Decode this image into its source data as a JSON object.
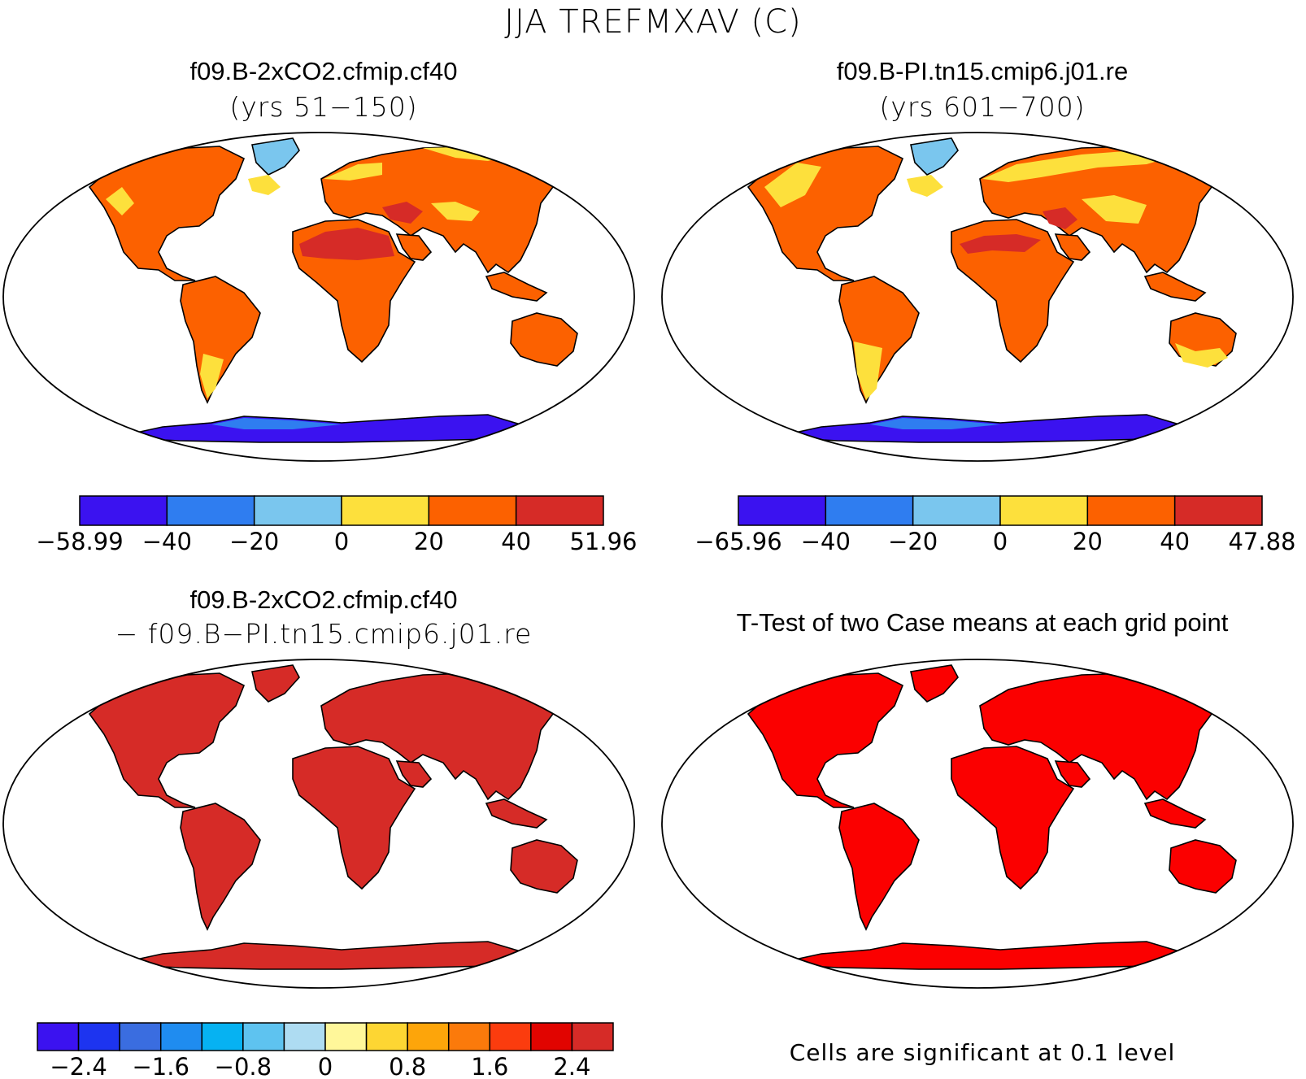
{
  "title": "JJA TREFMXAV (C)",
  "panels": [
    {
      "id": "case1",
      "title": "f09.B-2xCO2.cfmip.cf40",
      "subtitle": "(yrs 51−150)"
    },
    {
      "id": "case2",
      "title": "f09.B-PI.tn15.cmip6.j01.re",
      "subtitle": "(yrs 601−700)"
    },
    {
      "id": "diff",
      "title": "f09.B-2xCO2.cfmip.cf40",
      "subtitle": "− f09.B−PI.tn15.cmip6.j01.re"
    },
    {
      "id": "ttest",
      "title": "T-Test of two Case means at each grid point",
      "subtitle": ""
    }
  ],
  "colorbars": [
    {
      "id": "case1-bar",
      "colors": [
        "#3b12f0",
        "#2f7df0",
        "#7ac6ee",
        "#fde03c",
        "#fc6100",
        "#d62b27"
      ],
      "labels": [
        "−58.99",
        "−40",
        "−20",
        "0",
        "20",
        "40",
        "51.96"
      ]
    },
    {
      "id": "case2-bar",
      "colors": [
        "#3b12f0",
        "#2f7df0",
        "#7ac6ee",
        "#fde03c",
        "#fc6100",
        "#d62b27"
      ],
      "labels": [
        "−65.96",
        "−40",
        "−20",
        "0",
        "20",
        "40",
        "47.88"
      ]
    },
    {
      "id": "diff-bar",
      "colors": [
        "#3b12f0",
        "#1d34f0",
        "#3a6de0",
        "#1f8cf0",
        "#06b2f2",
        "#5ec3f0",
        "#aedcf2",
        "#fff79a",
        "#fdd633",
        "#fda50a",
        "#fb7a0b",
        "#fb3c0e",
        "#e10400",
        "#d62b27"
      ],
      "labels": [
        "−2.4",
        "−1.6",
        "−0.8",
        "0",
        "0.8",
        "1.6",
        "2.4"
      ]
    }
  ],
  "map_colors": {
    "case1": {
      "land": "#fc6100",
      "hot": "#d62b27",
      "warm": "#fde03c",
      "cold": "#7ac6ee",
      "ice_mid": "#2f7df0",
      "ice": "#3b12f0"
    },
    "case2": {
      "land": "#fc6100",
      "hot": "#d62b27",
      "warm": "#fde03c",
      "cold": "#7ac6ee",
      "ice_mid": "#2f7df0",
      "ice": "#3b12f0"
    },
    "diff": {
      "land": "#d62b27"
    },
    "ttest": {
      "land": "#fb0000"
    }
  },
  "significance_note": "Cells are significant at 0.1 level"
}
